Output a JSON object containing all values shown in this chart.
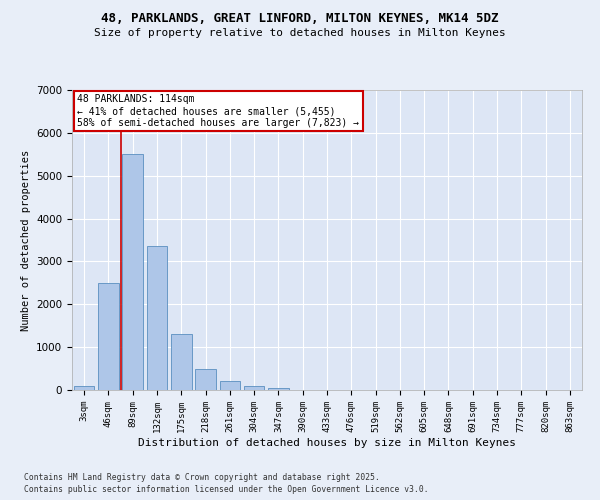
{
  "title_line1": "48, PARKLANDS, GREAT LINFORD, MILTON KEYNES, MK14 5DZ",
  "title_line2": "Size of property relative to detached houses in Milton Keynes",
  "xlabel": "Distribution of detached houses by size in Milton Keynes",
  "ylabel": "Number of detached properties",
  "footnote1": "Contains HM Land Registry data © Crown copyright and database right 2025.",
  "footnote2": "Contains public sector information licensed under the Open Government Licence v3.0.",
  "bar_labels": [
    "3sqm",
    "46sqm",
    "89sqm",
    "132sqm",
    "175sqm",
    "218sqm",
    "261sqm",
    "304sqm",
    "347sqm",
    "390sqm",
    "433sqm",
    "476sqm",
    "519sqm",
    "562sqm",
    "605sqm",
    "648sqm",
    "691sqm",
    "734sqm",
    "777sqm",
    "820sqm",
    "863sqm"
  ],
  "bar_values": [
    100,
    2500,
    5500,
    3350,
    1310,
    490,
    220,
    90,
    50,
    0,
    0,
    0,
    0,
    0,
    0,
    0,
    0,
    0,
    0,
    0,
    0
  ],
  "bar_color": "#aec6e8",
  "bar_edge_color": "#5a8fc0",
  "bg_color": "#e8eef8",
  "plot_bg_color": "#dde6f5",
  "grid_color": "#ffffff",
  "vline_color": "#cc0000",
  "annotation_title": "48 PARKLANDS: 114sqm",
  "annotation_line1": "← 41% of detached houses are smaller (5,455)",
  "annotation_line2": "58% of semi-detached houses are larger (7,823) →",
  "annotation_box_color": "#ffffff",
  "annotation_box_edge_color": "#cc0000",
  "ylim": [
    0,
    7000
  ],
  "yticks": [
    0,
    1000,
    2000,
    3000,
    4000,
    5000,
    6000,
    7000
  ]
}
